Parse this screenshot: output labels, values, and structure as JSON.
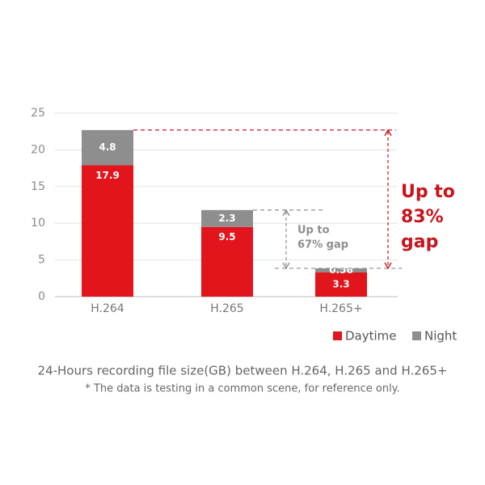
{
  "chart_data": {
    "type": "stacked_bar",
    "categories": [
      "H.264",
      "H.265",
      "H.265+"
    ],
    "series": [
      {
        "name": "Daytime",
        "color": "#e2141c",
        "values": [
          17.9,
          9.5,
          3.3
        ]
      },
      {
        "name": "Night",
        "color": "#8e8e8e",
        "values": [
          4.8,
          2.3,
          0.56
        ]
      }
    ],
    "ylim": [
      0,
      25
    ],
    "yticks": [
      0,
      5,
      10,
      15,
      20,
      25
    ],
    "grid": true,
    "annotations": [
      {
        "lines": [
          "Up to",
          "67% gap"
        ],
        "color": "#8e8e8e"
      },
      {
        "lines": [
          "Up to",
          "83%",
          "gap"
        ],
        "color": "#c8141c"
      }
    ],
    "caption": "24-Hours recording file size(GB) between H.264, H.265 and H.265+",
    "note": "* The data is testing in a common scene, for reference only."
  }
}
